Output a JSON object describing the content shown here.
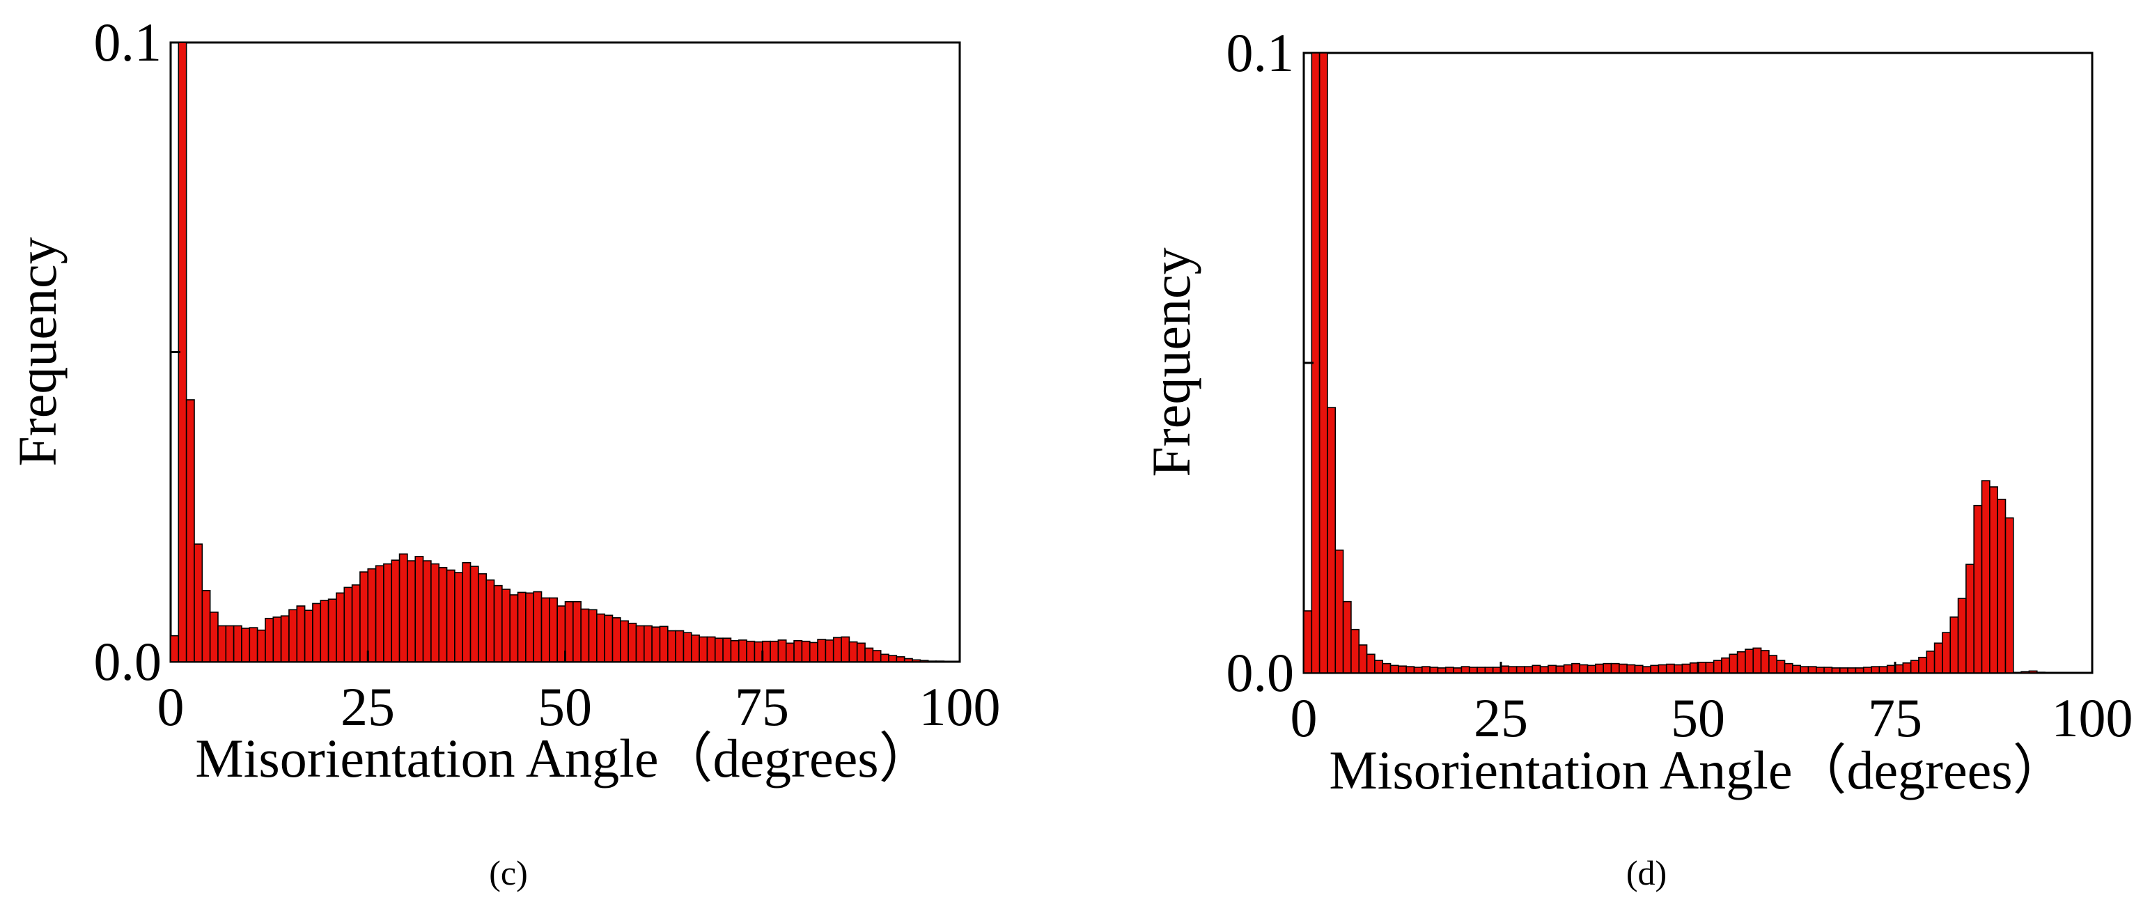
{
  "figure": {
    "panels": [
      "c",
      "d"
    ]
  },
  "chart_data": [
    {
      "type": "bar",
      "panel": "c",
      "caption": "(c)",
      "title": "",
      "xlabel": "Misorientation Angle（degrees）",
      "ylabel": "Frequency",
      "xlim": [
        0,
        100
      ],
      "ylim": [
        0,
        0.1
      ],
      "xticks": [
        "0",
        "25",
        "50",
        "75",
        "100"
      ],
      "yticks": [
        "0.0",
        "0.1"
      ],
      "bin_width": 1,
      "bar_color": "#e8120c",
      "edge_color": "#000000",
      "x": [
        0,
        1,
        2,
        3,
        4,
        5,
        6,
        7,
        8,
        9,
        10,
        11,
        12,
        13,
        14,
        15,
        16,
        17,
        18,
        19,
        20,
        21,
        22,
        23,
        24,
        25,
        26,
        27,
        28,
        29,
        30,
        31,
        32,
        33,
        34,
        35,
        36,
        37,
        38,
        39,
        40,
        41,
        42,
        43,
        44,
        45,
        46,
        47,
        48,
        49,
        50,
        51,
        52,
        53,
        54,
        55,
        56,
        57,
        58,
        59,
        60,
        61,
        62,
        63,
        64,
        65,
        66,
        67,
        68,
        69,
        70,
        71,
        72,
        73,
        74,
        75,
        76,
        77,
        78,
        79,
        80,
        81,
        82,
        83,
        84,
        85,
        86,
        87,
        88,
        89,
        90,
        91,
        92,
        93,
        94,
        95,
        96,
        97,
        98,
        99
      ],
      "values": [
        0.0042,
        0.1,
        0.0423,
        0.019,
        0.0115,
        0.008,
        0.0058,
        0.0058,
        0.0058,
        0.0054,
        0.0055,
        0.0051,
        0.007,
        0.0072,
        0.0074,
        0.0084,
        0.009,
        0.0083,
        0.0094,
        0.0099,
        0.0101,
        0.0111,
        0.012,
        0.0124,
        0.0145,
        0.015,
        0.0155,
        0.0158,
        0.0164,
        0.0174,
        0.0163,
        0.017,
        0.0163,
        0.0158,
        0.0152,
        0.0148,
        0.0144,
        0.016,
        0.0154,
        0.0142,
        0.0132,
        0.0123,
        0.0117,
        0.0108,
        0.0112,
        0.0111,
        0.0113,
        0.0103,
        0.0103,
        0.009,
        0.0097,
        0.0097,
        0.0085,
        0.0084,
        0.0077,
        0.0075,
        0.0071,
        0.0066,
        0.0062,
        0.0058,
        0.0058,
        0.0056,
        0.0057,
        0.005,
        0.005,
        0.0047,
        0.0043,
        0.004,
        0.004,
        0.0038,
        0.0038,
        0.0034,
        0.0035,
        0.0033,
        0.0032,
        0.0033,
        0.0033,
        0.0035,
        0.003,
        0.0034,
        0.0033,
        0.0031,
        0.0036,
        0.0035,
        0.0039,
        0.004,
        0.0032,
        0.003,
        0.0022,
        0.0018,
        0.0012,
        0.001,
        0.0008,
        0.0005,
        0.0003,
        0.0002,
        0.0001,
        0.0001,
        0.0,
        0.0
      ]
    },
    {
      "type": "bar",
      "panel": "d",
      "caption": "(d)",
      "title": "",
      "xlabel": "Misorientation Angle（degrees）",
      "ylabel": "Frequency",
      "xlim": [
        0,
        100
      ],
      "ylim": [
        0,
        0.1
      ],
      "xticks": [
        "0",
        "25",
        "50",
        "75",
        "100"
      ],
      "yticks": [
        "0.0",
        "0.1"
      ],
      "bin_width": 1,
      "bar_color": "#e8120c",
      "edge_color": "#000000",
      "x": [
        0,
        1,
        2,
        3,
        4,
        5,
        6,
        7,
        8,
        9,
        10,
        11,
        12,
        13,
        14,
        15,
        16,
        17,
        18,
        19,
        20,
        21,
        22,
        23,
        24,
        25,
        26,
        27,
        28,
        29,
        30,
        31,
        32,
        33,
        34,
        35,
        36,
        37,
        38,
        39,
        40,
        41,
        42,
        43,
        44,
        45,
        46,
        47,
        48,
        49,
        50,
        51,
        52,
        53,
        54,
        55,
        56,
        57,
        58,
        59,
        60,
        61,
        62,
        63,
        64,
        65,
        66,
        67,
        68,
        69,
        70,
        71,
        72,
        73,
        74,
        75,
        76,
        77,
        78,
        79,
        80,
        81,
        82,
        83,
        84,
        85,
        86,
        87,
        88,
        89,
        90,
        91,
        92,
        93,
        94,
        95,
        96,
        97,
        98,
        99
      ],
      "values": [
        0.01,
        0.1,
        0.1,
        0.0428,
        0.0198,
        0.0115,
        0.007,
        0.0045,
        0.003,
        0.002,
        0.0015,
        0.0012,
        0.0011,
        0.001,
        0.0009,
        0.001,
        0.0009,
        0.0008,
        0.0009,
        0.0008,
        0.001,
        0.0009,
        0.0009,
        0.0009,
        0.0009,
        0.0011,
        0.001,
        0.001,
        0.001,
        0.0012,
        0.001,
        0.0012,
        0.0011,
        0.0013,
        0.0015,
        0.0013,
        0.0012,
        0.0014,
        0.0015,
        0.0015,
        0.0014,
        0.0013,
        0.0012,
        0.001,
        0.0012,
        0.0013,
        0.0014,
        0.0013,
        0.0014,
        0.0016,
        0.0017,
        0.0017,
        0.002,
        0.0024,
        0.003,
        0.0034,
        0.0038,
        0.004,
        0.0036,
        0.0028,
        0.002,
        0.0015,
        0.0012,
        0.001,
        0.001,
        0.0009,
        0.0009,
        0.0008,
        0.0008,
        0.0008,
        0.0008,
        0.0009,
        0.001,
        0.001,
        0.0012,
        0.0013,
        0.0016,
        0.002,
        0.0025,
        0.0035,
        0.0048,
        0.0065,
        0.009,
        0.012,
        0.0175,
        0.027,
        0.031,
        0.03,
        0.028,
        0.025,
        0.0,
        0.0002,
        0.0003,
        0.0001,
        0.0,
        0.0,
        0.0,
        0.0,
        0.0,
        0.0
      ]
    }
  ]
}
